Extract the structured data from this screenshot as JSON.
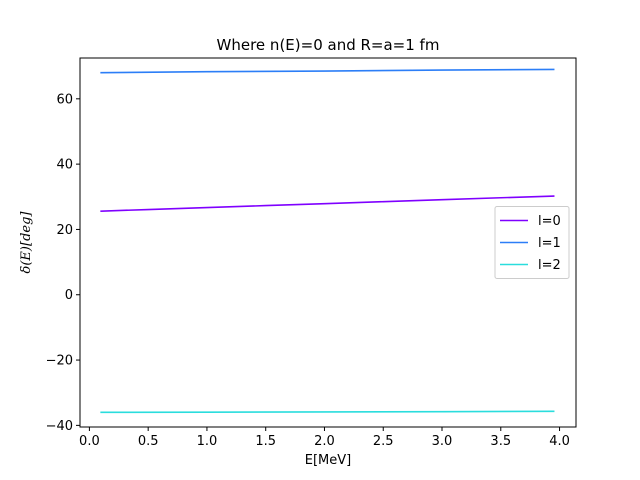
{
  "chart_data": {
    "type": "line",
    "title": "Where n(E)=0 and R=a=1 fm",
    "xlabel": "E[MeV]",
    "ylabel": "δ(E)[deg]",
    "xlim": [
      -0.08,
      4.14
    ],
    "ylim": [
      -40.5,
      72.5
    ],
    "xticks": [
      0.0,
      0.5,
      1.0,
      1.5,
      2.0,
      2.5,
      3.0,
      3.5,
      4.0
    ],
    "xtick_labels": [
      "0.0",
      "0.5",
      "1.0",
      "1.5",
      "2.0",
      "2.5",
      "3.0",
      "3.5",
      "4.0"
    ],
    "yticks": [
      -40,
      -20,
      0,
      20,
      40,
      60
    ],
    "ytick_labels": [
      "−40",
      "−20",
      "0",
      "20",
      "40",
      "60"
    ],
    "grid": false,
    "legend_position": "center-right",
    "series": [
      {
        "name": "l=0",
        "color": "#7f00ff",
        "x": [
          0.1,
          0.5,
          1.0,
          1.5,
          2.0,
          2.5,
          3.0,
          3.5,
          3.95
        ],
        "y": [
          25.6,
          26.1,
          26.7,
          27.3,
          27.9,
          28.5,
          29.1,
          29.7,
          30.2
        ]
      },
      {
        "name": "l=1",
        "color": "#2c7ef7",
        "x": [
          0.1,
          1.0,
          2.0,
          3.0,
          3.95
        ],
        "y": [
          68.0,
          68.3,
          68.5,
          68.8,
          69.0
        ]
      },
      {
        "name": "l=2",
        "color": "#2adddd",
        "x": [
          0.1,
          1.0,
          2.0,
          3.0,
          3.95
        ],
        "y": [
          -36.0,
          -35.95,
          -35.9,
          -35.8,
          -35.7
        ]
      }
    ]
  }
}
